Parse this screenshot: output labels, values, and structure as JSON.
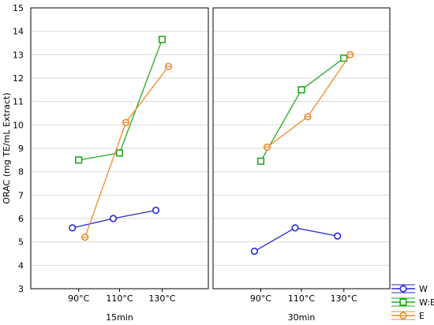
{
  "chart_data": {
    "type": "line",
    "ylabel": "ORAC (mg TE/mL Extract)",
    "ylim": [
      3,
      15
    ],
    "yticks": [
      3,
      4,
      5,
      6,
      7,
      8,
      9,
      10,
      11,
      12,
      13,
      14,
      15
    ],
    "grid": true,
    "legend_position": "bottom-right",
    "categories": [
      "90°C",
      "110°C",
      "130°C"
    ],
    "panels": [
      {
        "label": "15min",
        "series": [
          {
            "name": "W",
            "color": "#2a2ad6",
            "marker": "circle",
            "values": [
              5.6,
              6.0,
              6.35
            ]
          },
          {
            "name": "W:E",
            "color": "#22a822",
            "marker": "square",
            "values": [
              8.5,
              8.8,
              13.65
            ]
          },
          {
            "name": "E",
            "color": "#f08a24",
            "marker": "diamond",
            "values": [
              5.2,
              10.1,
              12.5
            ]
          }
        ]
      },
      {
        "label": "30min",
        "series": [
          {
            "name": "W",
            "color": "#2a2ad6",
            "marker": "circle",
            "values": [
              4.6,
              5.6,
              5.25
            ]
          },
          {
            "name": "W:E",
            "color": "#22a822",
            "marker": "square",
            "values": [
              8.45,
              11.5,
              12.85
            ]
          },
          {
            "name": "E",
            "color": "#f08a24",
            "marker": "diamond",
            "values": [
              9.05,
              10.35,
              13.0
            ]
          }
        ]
      }
    ]
  }
}
